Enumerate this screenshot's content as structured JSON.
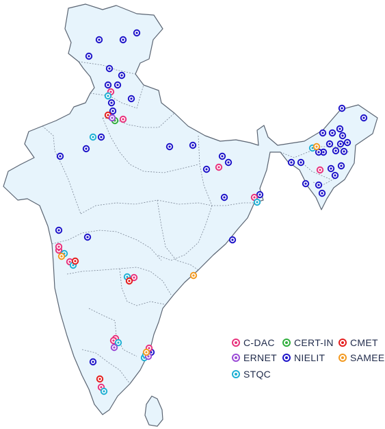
{
  "legend": [
    {
      "key": "cdac",
      "label": "C-DAC",
      "color": "#e8327c"
    },
    {
      "key": "certin",
      "label": "CERT-IN",
      "color": "#2fae3c"
    },
    {
      "key": "cmet",
      "label": "CMET",
      "color": "#e41d1d"
    },
    {
      "key": "ernet",
      "label": "ERNET",
      "color": "#9b4bd6"
    },
    {
      "key": "nielit",
      "label": "NIELIT",
      "color": "#1d14c9"
    },
    {
      "key": "sameer",
      "label": "SAMEER",
      "color": "#f39a21"
    },
    {
      "key": "stqc",
      "label": "STQC",
      "color": "#1fb0d4"
    }
  ],
  "map": {
    "land_color": "#e7f4fc",
    "border_color": "#5a6472"
  }
}
